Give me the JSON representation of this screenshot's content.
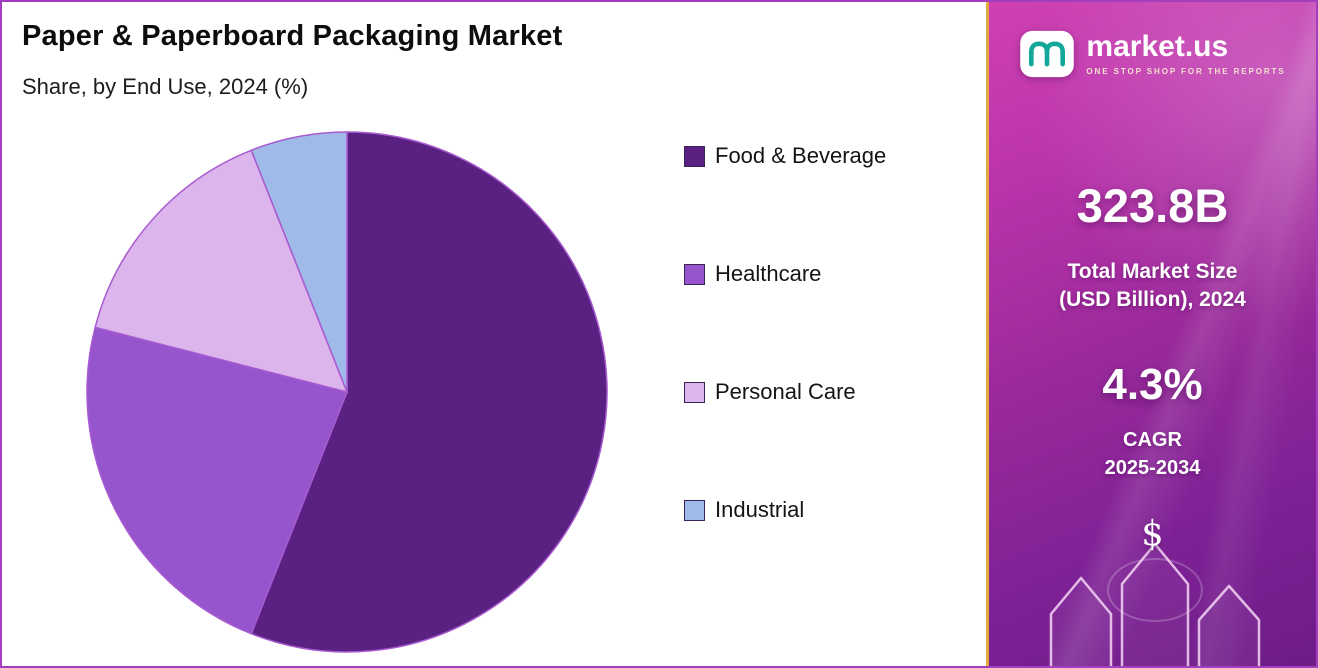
{
  "chart": {
    "title": "Paper & Paperboard Packaging Market",
    "subtitle": "Share, by End Use, 2024 (%)"
  },
  "chart_data": {
    "type": "pie",
    "title": "Paper & Paperboard Packaging Market",
    "subtitle": "Share, by End Use, 2024 (%)",
    "labels": [
      "Food & Beverage",
      "Healthcare",
      "Personal Care",
      "Industrial"
    ],
    "values": [
      56,
      23,
      15,
      6
    ],
    "unit": "%",
    "colors": [
      "#5b2182",
      "#9655cd",
      "#dcb5ec",
      "#9fb9e8"
    ],
    "outline_color": "#a85ad0",
    "start_angle_deg": 0,
    "direction": "clockwise",
    "legend_position": "right",
    "data_labels_shown": false
  },
  "sidebar": {
    "logo_text": "market.us",
    "logo_tagline": "ONE STOP SHOP FOR THE REPORTS",
    "market_size_value": "323.8B",
    "market_size_label_line1": "Total Market Size",
    "market_size_label_line2": "(USD Billion), 2024",
    "cagr_value": "4.3%",
    "cagr_label_line1": "CAGR",
    "cagr_label_line2": "2025-2034",
    "dollar_symbol": "$",
    "accent_magenta": "#cf41b2",
    "accent_purple": "#6d1c88",
    "separator_gold": "#e2a93c"
  }
}
